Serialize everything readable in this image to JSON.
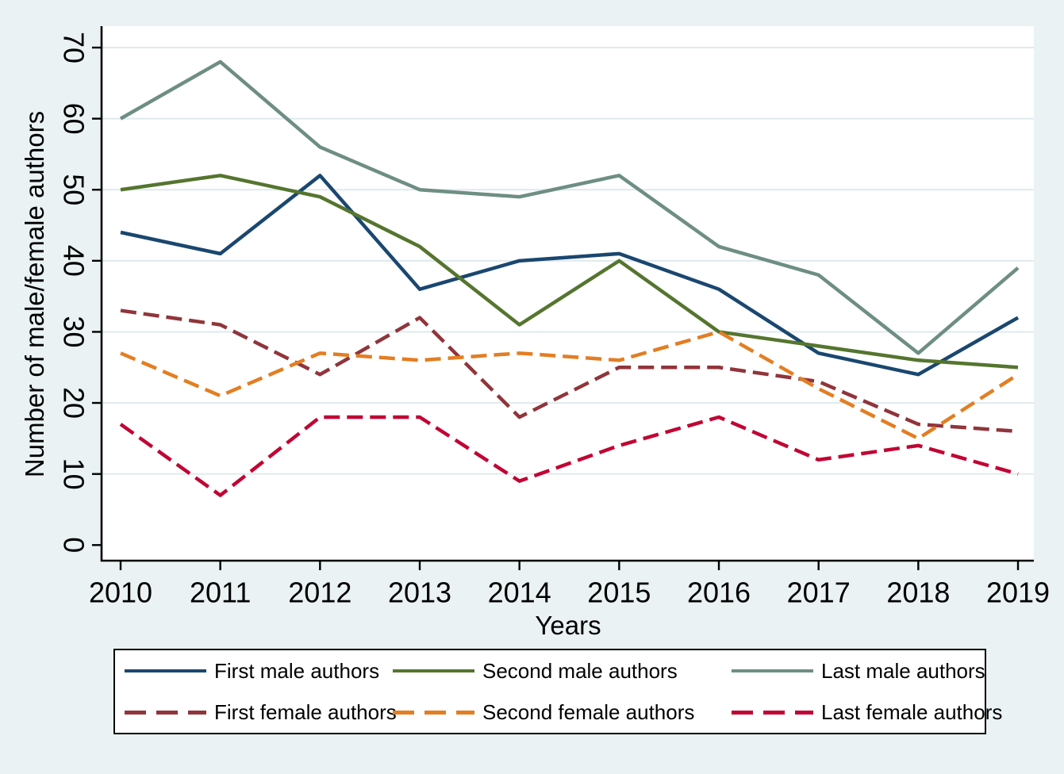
{
  "chart_data": {
    "type": "line",
    "title": "",
    "xlabel": "Years",
    "ylabel": "Number of male/female authors",
    "x": [
      2010,
      2011,
      2012,
      2013,
      2014,
      2015,
      2016,
      2017,
      2018,
      2019
    ],
    "ylim": [
      0,
      70
    ],
    "yticks": [
      0,
      10,
      20,
      30,
      40,
      50,
      60,
      70
    ],
    "grid": "horizontal-only",
    "legend_position": "bottom-box",
    "legend_rows": 2,
    "colors": {
      "background": "#eaf2f3",
      "plot_background": "#ffffff",
      "gridline": "#dfeaee",
      "axis": "#000000"
    },
    "series": [
      {
        "name": "First male authors",
        "color": "#1a476f",
        "dash": false,
        "values": [
          44,
          41,
          52,
          36,
          40,
          41,
          36,
          27,
          24,
          32
        ]
      },
      {
        "name": "Second male authors",
        "color": "#55752f",
        "dash": false,
        "values": [
          50,
          52,
          49,
          42,
          31,
          40,
          30,
          28,
          26,
          25
        ]
      },
      {
        "name": "Last male authors",
        "color": "#6e8e84",
        "dash": false,
        "values": [
          60,
          68,
          56,
          50,
          49,
          52,
          42,
          38,
          27,
          39
        ]
      },
      {
        "name": "First female authors",
        "color": "#90353b",
        "dash": true,
        "values": [
          33,
          31,
          24,
          32,
          18,
          25,
          25,
          23,
          17,
          16
        ]
      },
      {
        "name": "Second female authors",
        "color": "#e37e23",
        "dash": true,
        "values": [
          27,
          21,
          27,
          26,
          27,
          26,
          30,
          22,
          15,
          24
        ]
      },
      {
        "name": "Last female authors",
        "color": "#c10534",
        "dash": true,
        "values": [
          17,
          7,
          18,
          18,
          9,
          14,
          18,
          12,
          14,
          10
        ]
      }
    ]
  }
}
